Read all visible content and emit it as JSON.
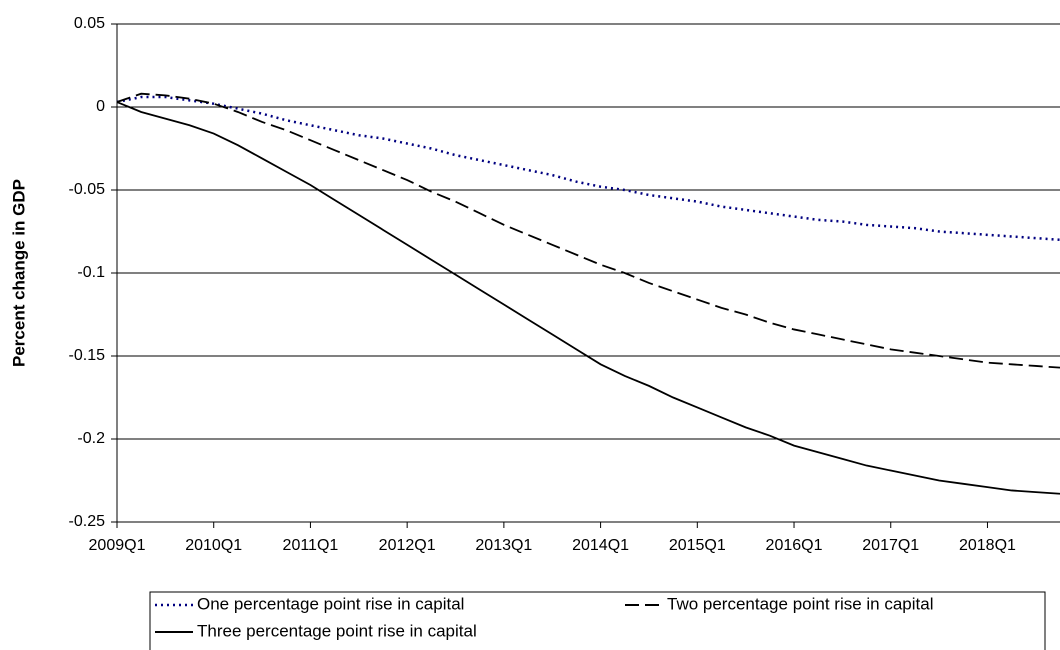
{
  "chart_data": {
    "type": "line",
    "y_label": "Percent change in GDP",
    "categories": [
      "2009Q1",
      null,
      null,
      null,
      "2010Q1",
      null,
      null,
      null,
      "2011Q1",
      null,
      null,
      null,
      "2012Q1",
      null,
      null,
      null,
      "2013Q1",
      null,
      null,
      null,
      "2014Q1",
      null,
      null,
      null,
      "2015Q1",
      null,
      null,
      null,
      "2016Q1",
      null,
      null,
      null,
      "2017Q1",
      null,
      null,
      null,
      "2018Q1",
      null,
      null,
      null
    ],
    "series": [
      {
        "name": "One percentage point rise in capital",
        "color": "#000080",
        "dash": "dotted",
        "values": [
          0.003,
          0.006,
          0.006,
          0.004,
          0.002,
          -0.001,
          -0.004,
          -0.008,
          -0.011,
          -0.014,
          -0.017,
          -0.019,
          -0.022,
          -0.025,
          -0.029,
          -0.032,
          -0.035,
          -0.038,
          -0.041,
          -0.045,
          -0.048,
          -0.05,
          -0.053,
          -0.055,
          -0.057,
          -0.06,
          -0.062,
          -0.064,
          -0.066,
          -0.068,
          -0.069,
          -0.071,
          -0.072,
          -0.073,
          -0.075,
          -0.076,
          -0.077,
          -0.078,
          -0.079,
          -0.08
        ]
      },
      {
        "name": "Two percentage point rise in capital",
        "color": "#000000",
        "dash": "dashed",
        "values": [
          0.003,
          0.008,
          0.007,
          0.005,
          0.002,
          -0.003,
          -0.009,
          -0.014,
          -0.02,
          -0.026,
          -0.032,
          -0.038,
          -0.044,
          -0.051,
          -0.057,
          -0.064,
          -0.071,
          -0.077,
          -0.083,
          -0.089,
          -0.095,
          -0.1,
          -0.106,
          -0.111,
          -0.116,
          -0.121,
          -0.125,
          -0.13,
          -0.134,
          -0.137,
          -0.14,
          -0.143,
          -0.146,
          -0.148,
          -0.15,
          -0.152,
          -0.154,
          -0.155,
          -0.156,
          -0.157
        ]
      },
      {
        "name": "Three percentage point rise in capital",
        "color": "#000000",
        "dash": "solid",
        "values": [
          0.003,
          -0.003,
          -0.007,
          -0.011,
          -0.016,
          -0.023,
          -0.031,
          -0.039,
          -0.047,
          -0.056,
          -0.065,
          -0.074,
          -0.083,
          -0.092,
          -0.101,
          -0.11,
          -0.119,
          -0.128,
          -0.137,
          -0.146,
          -0.155,
          -0.162,
          -0.168,
          -0.175,
          -0.181,
          -0.187,
          -0.193,
          -0.198,
          -0.204,
          -0.208,
          -0.212,
          -0.216,
          -0.219,
          -0.222,
          -0.225,
          -0.227,
          -0.229,
          -0.231,
          -0.232,
          -0.233
        ]
      }
    ],
    "ylim": [
      -0.25,
      0.05
    ],
    "yticks": [
      0.05,
      0,
      -0.05,
      -0.1,
      -0.15,
      -0.2,
      -0.25
    ],
    "grid": true,
    "legend": "bottom"
  }
}
